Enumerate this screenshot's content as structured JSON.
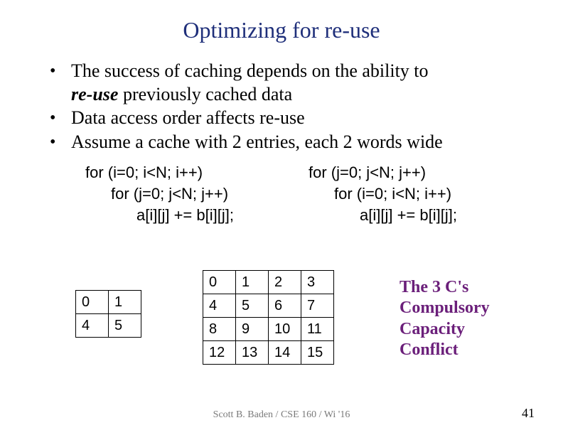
{
  "title": "Optimizing for re-use",
  "title_color": "#1f2f7a",
  "bullets": {
    "b1_a": "The success of caching depends on the ability to",
    "b1_b_ital": "re-use",
    "b1_b_rest": " previously cached data",
    "b2": "Data access order affects re-use",
    "b3": "Assume a cache with 2 entries, each 2 words wide"
  },
  "code_left": {
    "l1": "for (i=0; i<N; i++)",
    "l2": "for (j=0; j<N; j++)",
    "l3": "a[i][j] += b[i][j];"
  },
  "code_right": {
    "l1": "for (j=0; j<N; j++)",
    "l2": "for (i=0; i<N; i++)",
    "l3": "a[i][j] += b[i][j];"
  },
  "small_table": {
    "rows": [
      [
        "0",
        "1"
      ],
      [
        "4",
        "5"
      ]
    ]
  },
  "big_table": {
    "rows": [
      [
        "0",
        "1",
        "2",
        "3"
      ],
      [
        "4",
        "5",
        "6",
        "7"
      ],
      [
        "8",
        "9",
        "10",
        "11"
      ],
      [
        "12",
        "13",
        "14",
        "15"
      ]
    ]
  },
  "three_cs": {
    "h": "The 3 C's",
    "l1": "Compulsory",
    "l2": "Capacity",
    "l3": "Conflict",
    "color": "#6b1f7a"
  },
  "footer": "Scott B. Baden / CSE 160 / Wi '16",
  "page_number": "41"
}
